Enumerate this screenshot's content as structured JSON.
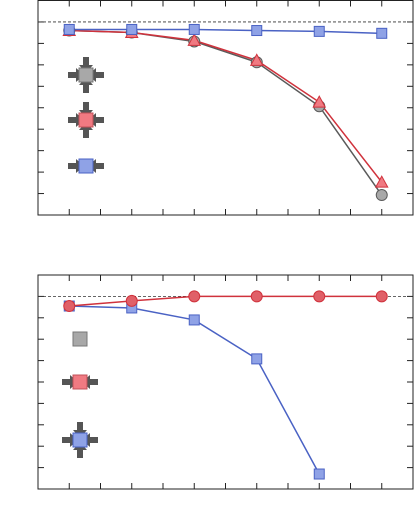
{
  "chart_data": [
    {
      "type": "line",
      "xlim": [
        0.5,
        6.5
      ],
      "ylim": [
        0.1,
        1.1
      ],
      "xticks": [
        1,
        1.5,
        2,
        2.5,
        3,
        3.5,
        4,
        4.5,
        5,
        5.5,
        6
      ],
      "yticks": [
        0.2,
        0.3,
        0.4,
        0.5,
        0.6,
        0.7,
        0.8,
        0.9,
        1.0
      ],
      "reference_line": 1.0,
      "x": [
        1,
        2,
        3,
        4,
        5,
        6
      ],
      "series": [
        {
          "color": "#5a5a5a",
          "fill": "#a8a8a8",
          "marker": "circle",
          "values": [
            0.96,
            0.951,
            0.909,
            0.812,
            0.607,
            0.193
          ]
        },
        {
          "color": "#d0323c",
          "fill": "#f07a82",
          "marker": "triangle",
          "values": [
            0.96,
            0.951,
            0.914,
            0.821,
            0.626,
            0.253
          ]
        },
        {
          "color": "#4a62c4",
          "fill": "#8fa2e6",
          "marker": "square",
          "values": [
            0.965,
            0.965,
            0.965,
            0.96,
            0.956,
            0.947
          ]
        }
      ]
    },
    {
      "type": "line",
      "xlim": [
        0.5,
        6.5
      ],
      "ylim": [
        0.1,
        1.1
      ],
      "xticks": [
        1,
        1.5,
        2,
        2.5,
        3,
        3.5,
        4,
        4.5,
        5,
        5.5,
        6
      ],
      "yticks": [
        0.2,
        0.3,
        0.4,
        0.5,
        0.6,
        0.7,
        0.8,
        0.9,
        1.0
      ],
      "reference_line": 1.0,
      "x": [
        1,
        2,
        3,
        4,
        5,
        6
      ],
      "series": [
        {
          "color": "#4a62c4",
          "fill": "#8fa2e6",
          "marker": "square",
          "values": [
            0.955,
            0.946,
            0.89,
            0.708,
            0.17,
            null
          ]
        },
        {
          "color": "#d0323c",
          "fill": "#e06068",
          "marker": "circle",
          "values": [
            0.955,
            0.979,
            1.0,
            1.0,
            1.0,
            1.0
          ]
        }
      ]
    }
  ]
}
